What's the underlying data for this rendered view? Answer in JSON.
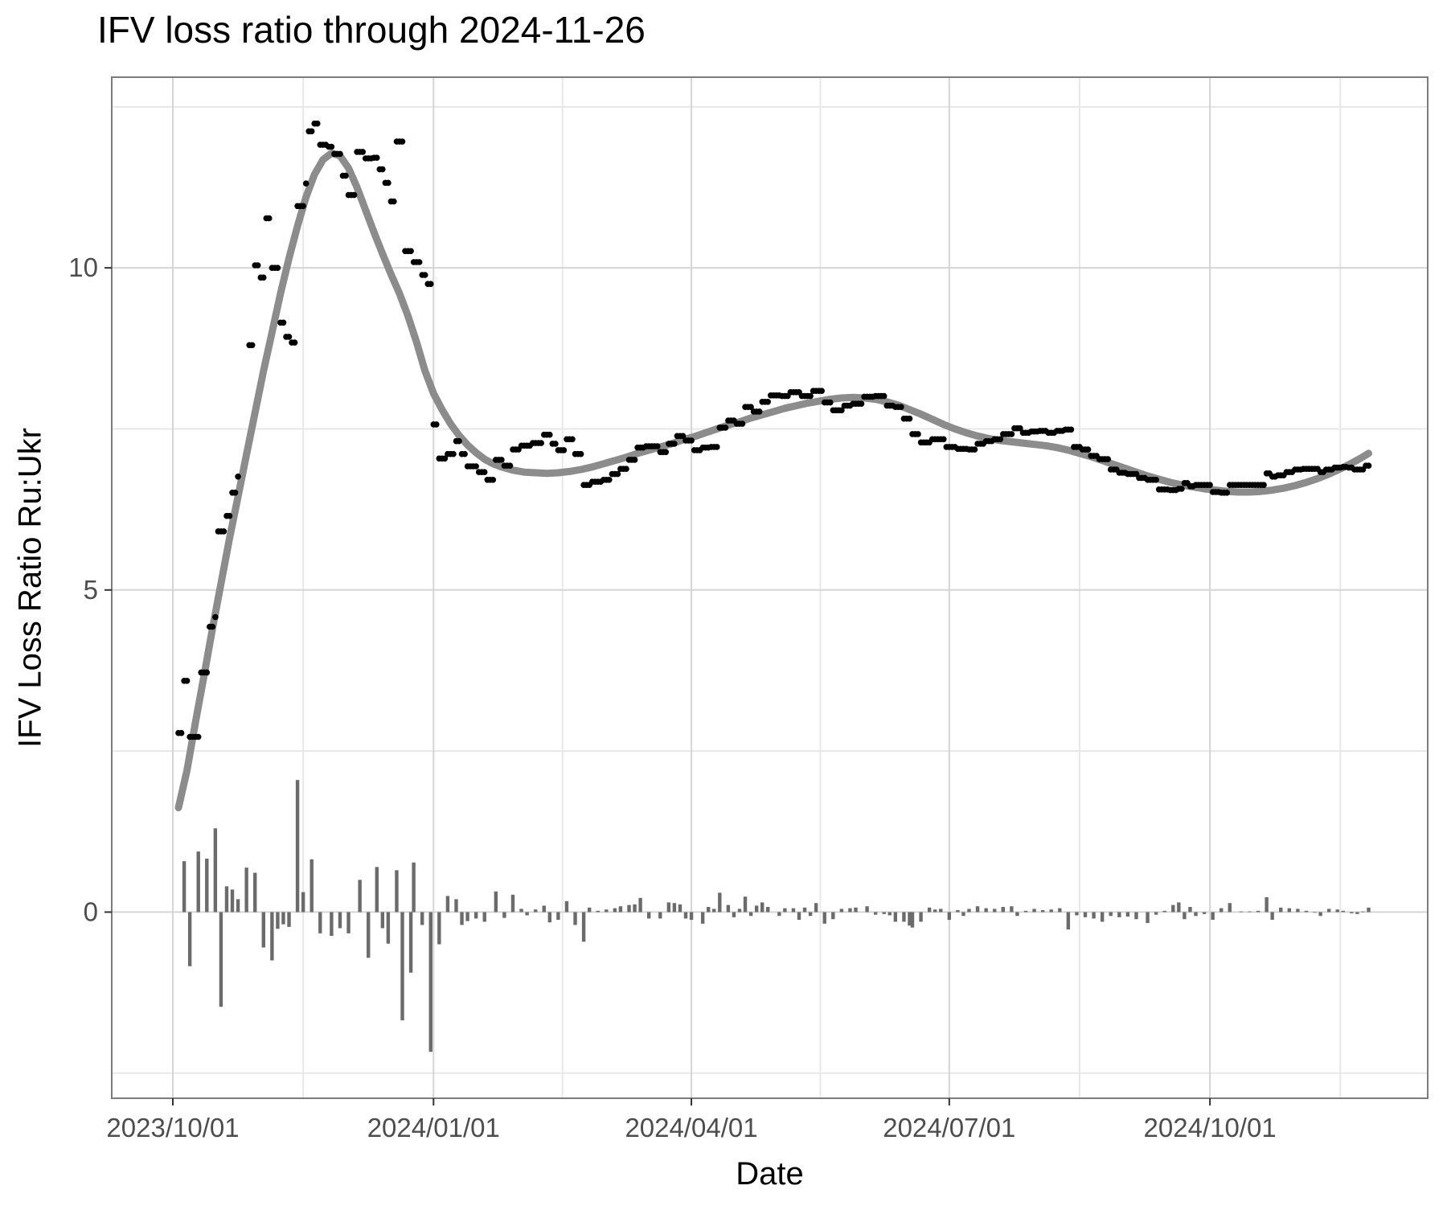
{
  "chart_data": {
    "type": "scatter",
    "title": "IFV loss ratio through 2024-11-26",
    "xlabel": "Date",
    "ylabel": "IFV Loss Ratio Ru:Ukr",
    "x_unit": "days since 2023-10-01",
    "x_tick_labels": [
      "2023/10/01",
      "2024/01/01",
      "2024/04/01",
      "2024/07/01",
      "2024/10/01"
    ],
    "x_tick_days": [
      0,
      92,
      183,
      274,
      366
    ],
    "x_minor_days": [
      46,
      137.5,
      228.5,
      320,
      412
    ],
    "y_tick_labels": [
      "0",
      "5",
      "10"
    ],
    "y_tick_values": [
      0,
      5,
      10
    ],
    "y_minor_values": [
      -2.5,
      2.5,
      7.5,
      12.5
    ],
    "xlim_days": [
      -21.56,
      442.85
    ],
    "ylim": [
      -2.89,
      12.96
    ],
    "grid": "major and minor, light gray on white, gray panel border",
    "legend": "none",
    "end_day": 422,
    "colors": {
      "point": "#000000",
      "smooth_line": "#8c8c8c",
      "bar": "#6b6b6b",
      "grid_major": "#d5d5d5",
      "grid_minor": "#e8e8e8",
      "panel_border": "#7c7c7c",
      "axis_tick": "#333333",
      "tick_text": "#4d4d4d",
      "title_text": "#000000"
    },
    "series": [
      {
        "name": "daily loss ratio (points, step-held between observations)"
      },
      {
        "name": "loess smooth (thick gray line)"
      },
      {
        "name": "daily change (thin bars at y=0)"
      }
    ],
    "points": [
      [
        2,
        2.78
      ],
      [
        4,
        3.59
      ],
      [
        6,
        2.72
      ],
      [
        10,
        3.72
      ],
      [
        13,
        4.43
      ],
      [
        15,
        4.58
      ],
      [
        16,
        5.91
      ],
      [
        19,
        6.15
      ],
      [
        21,
        6.51
      ],
      [
        23,
        6.76
      ],
      [
        24,
        null
      ],
      [
        27,
        8.8
      ],
      [
        29,
        10.04
      ],
      [
        31,
        9.85
      ],
      [
        33,
        10.77
      ],
      [
        35,
        10.0
      ],
      [
        38,
        9.15
      ],
      [
        40,
        8.93
      ],
      [
        42,
        8.84
      ],
      [
        44,
        10.96
      ],
      [
        47,
        11.31
      ],
      [
        48,
        12.12
      ],
      [
        50,
        12.24
      ],
      [
        52,
        11.91
      ],
      [
        55,
        11.88
      ],
      [
        57,
        11.77
      ],
      [
        60,
        11.43
      ],
      [
        62,
        11.13
      ],
      [
        65,
        11.8
      ],
      [
        68,
        11.7
      ],
      [
        71,
        11.71
      ],
      [
        73,
        11.53
      ],
      [
        75,
        11.32
      ],
      [
        77,
        11.03
      ],
      [
        79,
        11.96
      ],
      [
        82,
        10.26
      ],
      [
        85,
        10.09
      ],
      [
        88,
        9.89
      ],
      [
        90,
        9.75
      ],
      [
        92,
        7.57
      ],
      [
        94,
        7.04
      ],
      [
        97,
        7.11
      ],
      [
        100,
        7.31
      ],
      [
        102,
        7.11
      ],
      [
        104,
        6.92
      ],
      [
        108,
        6.83
      ],
      [
        111,
        6.71
      ],
      [
        114,
        7.02
      ],
      [
        117,
        6.93
      ],
      [
        120,
        7.18
      ],
      [
        123,
        7.24
      ],
      [
        127,
        7.28
      ],
      [
        131,
        7.41
      ],
      [
        134,
        7.27
      ],
      [
        136,
        7.17
      ],
      [
        139,
        7.34
      ],
      [
        142,
        7.11
      ],
      [
        145,
        6.63
      ],
      [
        148,
        6.68
      ],
      [
        152,
        6.71
      ],
      [
        155,
        6.8
      ],
      [
        158,
        6.88
      ],
      [
        161,
        7.02
      ],
      [
        164,
        7.21
      ],
      [
        167,
        7.23
      ],
      [
        172,
        7.14
      ],
      [
        175,
        7.27
      ],
      [
        178,
        7.39
      ],
      [
        181,
        7.32
      ],
      [
        184,
        7.17
      ],
      [
        187,
        7.21
      ],
      [
        190,
        7.22
      ],
      [
        193,
        7.52
      ],
      [
        196,
        7.63
      ],
      [
        199,
        7.58
      ],
      [
        202,
        7.84
      ],
      [
        205,
        7.77
      ],
      [
        208,
        7.92
      ],
      [
        211,
        8.02
      ],
      [
        215,
        8.01
      ],
      [
        218,
        8.07
      ],
      [
        222,
        8.01
      ],
      [
        226,
        8.09
      ],
      [
        230,
        7.91
      ],
      [
        233,
        7.79
      ],
      [
        237,
        7.86
      ],
      [
        240,
        7.89
      ],
      [
        244,
        8.0
      ],
      [
        248,
        8.01
      ],
      [
        252,
        7.86
      ],
      [
        255,
        7.84
      ],
      [
        258,
        7.66
      ],
      [
        261,
        7.42
      ],
      [
        264,
        7.29
      ],
      [
        268,
        7.34
      ],
      [
        273,
        7.22
      ],
      [
        277,
        7.19
      ],
      [
        281,
        7.18
      ],
      [
        284,
        7.27
      ],
      [
        287,
        7.31
      ],
      [
        290,
        7.34
      ],
      [
        293,
        7.42
      ],
      [
        297,
        7.51
      ],
      [
        300,
        7.44
      ],
      [
        303,
        7.46
      ],
      [
        306,
        7.47
      ],
      [
        309,
        7.44
      ],
      [
        312,
        7.47
      ],
      [
        315,
        7.49
      ],
      [
        318,
        7.22
      ],
      [
        321,
        7.18
      ],
      [
        324,
        7.08
      ],
      [
        327,
        7.03
      ],
      [
        331,
        6.87
      ],
      [
        334,
        6.82
      ],
      [
        337,
        6.8
      ],
      [
        341,
        6.74
      ],
      [
        344,
        6.71
      ],
      [
        348,
        6.56
      ],
      [
        352,
        6.55
      ],
      [
        355,
        6.57
      ],
      [
        357,
        6.66
      ],
      [
        359,
        6.61
      ],
      [
        361,
        6.63
      ],
      [
        367,
        6.52
      ],
      [
        370,
        6.51
      ],
      [
        373,
        6.63
      ],
      [
        386,
        6.81
      ],
      [
        388,
        6.76
      ],
      [
        390,
        6.78
      ],
      [
        393,
        6.83
      ],
      [
        396,
        6.87
      ],
      [
        399,
        6.88
      ],
      [
        403,
        6.88
      ],
      [
        405,
        6.83
      ],
      [
        407,
        6.87
      ],
      [
        410,
        6.9
      ],
      [
        413,
        6.91
      ],
      [
        415,
        6.9
      ],
      [
        417,
        6.87
      ],
      [
        419,
        6.87
      ],
      [
        421,
        6.93
      ],
      [
        422,
        6.93
      ]
    ],
    "smooth": [
      [
        2,
        1.62
      ],
      [
        5,
        2.2
      ],
      [
        8,
        2.95
      ],
      [
        11,
        3.67
      ],
      [
        14,
        4.4
      ],
      [
        17,
        5.1
      ],
      [
        20,
        5.8
      ],
      [
        23,
        6.45
      ],
      [
        26,
        7.1
      ],
      [
        29,
        7.75
      ],
      [
        32,
        8.4
      ],
      [
        35,
        9.0
      ],
      [
        38,
        9.6
      ],
      [
        41,
        10.15
      ],
      [
        44,
        10.65
      ],
      [
        47,
        11.1
      ],
      [
        50,
        11.45
      ],
      [
        53,
        11.68
      ],
      [
        56,
        11.78
      ],
      [
        59,
        11.74
      ],
      [
        62,
        11.55
      ],
      [
        65,
        11.25
      ],
      [
        68,
        10.9
      ],
      [
        71,
        10.55
      ],
      [
        74,
        10.22
      ],
      [
        77,
        9.9
      ],
      [
        80,
        9.6
      ],
      [
        83,
        9.25
      ],
      [
        86,
        8.85
      ],
      [
        89,
        8.4
      ],
      [
        92,
        8.05
      ],
      [
        95,
        7.8
      ],
      [
        98,
        7.58
      ],
      [
        101,
        7.4
      ],
      [
        104,
        7.25
      ],
      [
        107,
        7.13
      ],
      [
        110,
        7.03
      ],
      [
        113,
        6.96
      ],
      [
        116,
        6.91
      ],
      [
        120,
        6.86
      ],
      [
        124,
        6.83
      ],
      [
        128,
        6.82
      ],
      [
        132,
        6.81
      ],
      [
        136,
        6.82
      ],
      [
        140,
        6.84
      ],
      [
        144,
        6.87
      ],
      [
        148,
        6.91
      ],
      [
        152,
        6.96
      ],
      [
        156,
        7.01
      ],
      [
        160,
        7.06
      ],
      [
        164,
        7.12
      ],
      [
        168,
        7.17
      ],
      [
        172,
        7.22
      ],
      [
        176,
        7.27
      ],
      [
        180,
        7.33
      ],
      [
        184,
        7.38
      ],
      [
        188,
        7.44
      ],
      [
        192,
        7.5
      ],
      [
        196,
        7.56
      ],
      [
        200,
        7.61
      ],
      [
        204,
        7.67
      ],
      [
        208,
        7.72
      ],
      [
        212,
        7.77
      ],
      [
        216,
        7.82
      ],
      [
        220,
        7.86
      ],
      [
        224,
        7.9
      ],
      [
        228,
        7.93
      ],
      [
        232,
        7.96
      ],
      [
        236,
        7.98
      ],
      [
        240,
        7.99
      ],
      [
        244,
        7.98
      ],
      [
        248,
        7.96
      ],
      [
        252,
        7.92
      ],
      [
        256,
        7.87
      ],
      [
        260,
        7.8
      ],
      [
        264,
        7.73
      ],
      [
        268,
        7.65
      ],
      [
        272,
        7.57
      ],
      [
        276,
        7.5
      ],
      [
        280,
        7.44
      ],
      [
        284,
        7.39
      ],
      [
        288,
        7.35
      ],
      [
        292,
        7.32
      ],
      [
        296,
        7.3
      ],
      [
        300,
        7.28
      ],
      [
        304,
        7.26
      ],
      [
        308,
        7.24
      ],
      [
        312,
        7.21
      ],
      [
        316,
        7.17
      ],
      [
        320,
        7.12
      ],
      [
        324,
        7.07
      ],
      [
        328,
        7.01
      ],
      [
        332,
        6.95
      ],
      [
        336,
        6.89
      ],
      [
        340,
        6.83
      ],
      [
        344,
        6.77
      ],
      [
        348,
        6.72
      ],
      [
        352,
        6.67
      ],
      [
        356,
        6.63
      ],
      [
        360,
        6.6
      ],
      [
        364,
        6.57
      ],
      [
        368,
        6.55
      ],
      [
        372,
        6.53
      ],
      [
        376,
        6.52
      ],
      [
        380,
        6.52
      ],
      [
        384,
        6.53
      ],
      [
        388,
        6.55
      ],
      [
        392,
        6.58
      ],
      [
        396,
        6.62
      ],
      [
        400,
        6.67
      ],
      [
        404,
        6.73
      ],
      [
        408,
        6.8
      ],
      [
        412,
        6.88
      ],
      [
        416,
        6.97
      ],
      [
        419,
        7.04
      ],
      [
        422,
        7.12
      ]
    ],
    "bars": [
      [
        4,
        0.79
      ],
      [
        6,
        -0.84
      ],
      [
        9,
        0.94
      ],
      [
        12,
        0.83
      ],
      [
        15,
        1.3
      ],
      [
        17,
        -1.47
      ],
      [
        19,
        0.4
      ],
      [
        21,
        0.35
      ],
      [
        23,
        0.2
      ],
      [
        26,
        0.69
      ],
      [
        29,
        0.61
      ],
      [
        32,
        -0.55
      ],
      [
        35,
        -0.75
      ],
      [
        37,
        -0.26
      ],
      [
        39,
        -0.19
      ],
      [
        41,
        -0.23
      ],
      [
        44,
        2.05
      ],
      [
        46,
        0.31
      ],
      [
        49,
        0.82
      ],
      [
        52,
        -0.33
      ],
      [
        56,
        -0.37
      ],
      [
        59,
        -0.25
      ],
      [
        62,
        -0.33
      ],
      [
        66,
        0.5
      ],
      [
        69,
        -0.71
      ],
      [
        72,
        0.7
      ],
      [
        74,
        -0.25
      ],
      [
        76,
        -0.49
      ],
      [
        79,
        0.65
      ],
      [
        81,
        -1.68
      ],
      [
        84,
        -0.94
      ],
      [
        85,
        0.77
      ],
      [
        88,
        -0.2
      ],
      [
        91,
        -2.17
      ],
      [
        94,
        -0.5
      ],
      [
        97,
        0.25
      ],
      [
        100,
        0.2
      ],
      [
        102,
        -0.2
      ],
      [
        104,
        -0.14
      ],
      [
        107,
        -0.1
      ],
      [
        110,
        -0.15
      ],
      [
        114,
        0.32
      ],
      [
        117,
        -0.09
      ],
      [
        120,
        0.27
      ],
      [
        123,
        0.05
      ],
      [
        125,
        -0.05
      ],
      [
        128,
        0.04
      ],
      [
        131,
        0.1
      ],
      [
        133,
        -0.16
      ],
      [
        136,
        -0.12
      ],
      [
        139,
        0.17
      ],
      [
        142,
        -0.2
      ],
      [
        145,
        -0.46
      ],
      [
        147,
        0.07
      ],
      [
        150,
        0.02
      ],
      [
        153,
        0.04
      ],
      [
        156,
        0.06
      ],
      [
        158,
        0.09
      ],
      [
        161,
        0.11
      ],
      [
        163,
        0.12
      ],
      [
        165,
        0.22
      ],
      [
        168,
        -0.1
      ],
      [
        172,
        -0.1
      ],
      [
        175,
        0.15
      ],
      [
        177,
        0.14
      ],
      [
        179,
        0.12
      ],
      [
        181,
        -0.1
      ],
      [
        183,
        -0.12
      ],
      [
        187,
        -0.18
      ],
      [
        189,
        0.08
      ],
      [
        191,
        0.05
      ],
      [
        193,
        0.3
      ],
      [
        196,
        0.11
      ],
      [
        198,
        -0.08
      ],
      [
        200,
        0.05
      ],
      [
        202,
        0.24
      ],
      [
        204,
        -0.06
      ],
      [
        206,
        0.1
      ],
      [
        208,
        0.15
      ],
      [
        210,
        0.08
      ],
      [
        214,
        -0.06
      ],
      [
        216,
        0.06
      ],
      [
        219,
        0.06
      ],
      [
        221,
        -0.12
      ],
      [
        223,
        0.07
      ],
      [
        225,
        -0.06
      ],
      [
        227,
        0.14
      ],
      [
        230,
        -0.18
      ],
      [
        233,
        -0.11
      ],
      [
        236,
        0.05
      ],
      [
        239,
        0.06
      ],
      [
        241,
        0.07
      ],
      [
        245,
        0.09
      ],
      [
        248,
        -0.04
      ],
      [
        251,
        -0.03
      ],
      [
        253,
        -0.05
      ],
      [
        255,
        -0.15
      ],
      [
        258,
        -0.15
      ],
      [
        260,
        -0.21
      ],
      [
        261,
        -0.24
      ],
      [
        264,
        -0.15
      ],
      [
        267,
        0.07
      ],
      [
        269,
        0.04
      ],
      [
        271,
        0.05
      ],
      [
        274,
        -0.12
      ],
      [
        277,
        0.03
      ],
      [
        279,
        -0.06
      ],
      [
        281,
        0.05
      ],
      [
        284,
        0.09
      ],
      [
        287,
        0.06
      ],
      [
        290,
        0.05
      ],
      [
        293,
        0.08
      ],
      [
        296,
        0.09
      ],
      [
        298,
        -0.06
      ],
      [
        301,
        0.02
      ],
      [
        304,
        0.05
      ],
      [
        307,
        0.03
      ],
      [
        310,
        0.04
      ],
      [
        313,
        0.06
      ],
      [
        316,
        -0.27
      ],
      [
        319,
        -0.05
      ],
      [
        322,
        -0.08
      ],
      [
        325,
        -0.1
      ],
      [
        328,
        -0.15
      ],
      [
        331,
        -0.06
      ],
      [
        334,
        -0.08
      ],
      [
        337,
        -0.07
      ],
      [
        340,
        -0.11
      ],
      [
        344,
        -0.17
      ],
      [
        347,
        -0.04
      ],
      [
        350,
        0.02
      ],
      [
        353,
        0.11
      ],
      [
        355,
        0.15
      ],
      [
        357,
        -0.11
      ],
      [
        359,
        0.08
      ],
      [
        361,
        -0.06
      ],
      [
        364,
        -0.03
      ],
      [
        367,
        -0.12
      ],
      [
        370,
        0.06
      ],
      [
        373,
        0.14
      ],
      [
        377,
        0.01
      ],
      [
        380,
        0.01
      ],
      [
        383,
        0.02
      ],
      [
        386,
        0.23
      ],
      [
        388,
        -0.12
      ],
      [
        391,
        0.07
      ],
      [
        394,
        0.06
      ],
      [
        397,
        0.05
      ],
      [
        400,
        0.02
      ],
      [
        403,
        -0.01
      ],
      [
        405,
        -0.06
      ],
      [
        408,
        0.05
      ],
      [
        411,
        0.04
      ],
      [
        413,
        0.02
      ],
      [
        416,
        -0.02
      ],
      [
        418,
        -0.03
      ],
      [
        420,
        0.01
      ],
      [
        422,
        0.07
      ]
    ]
  }
}
